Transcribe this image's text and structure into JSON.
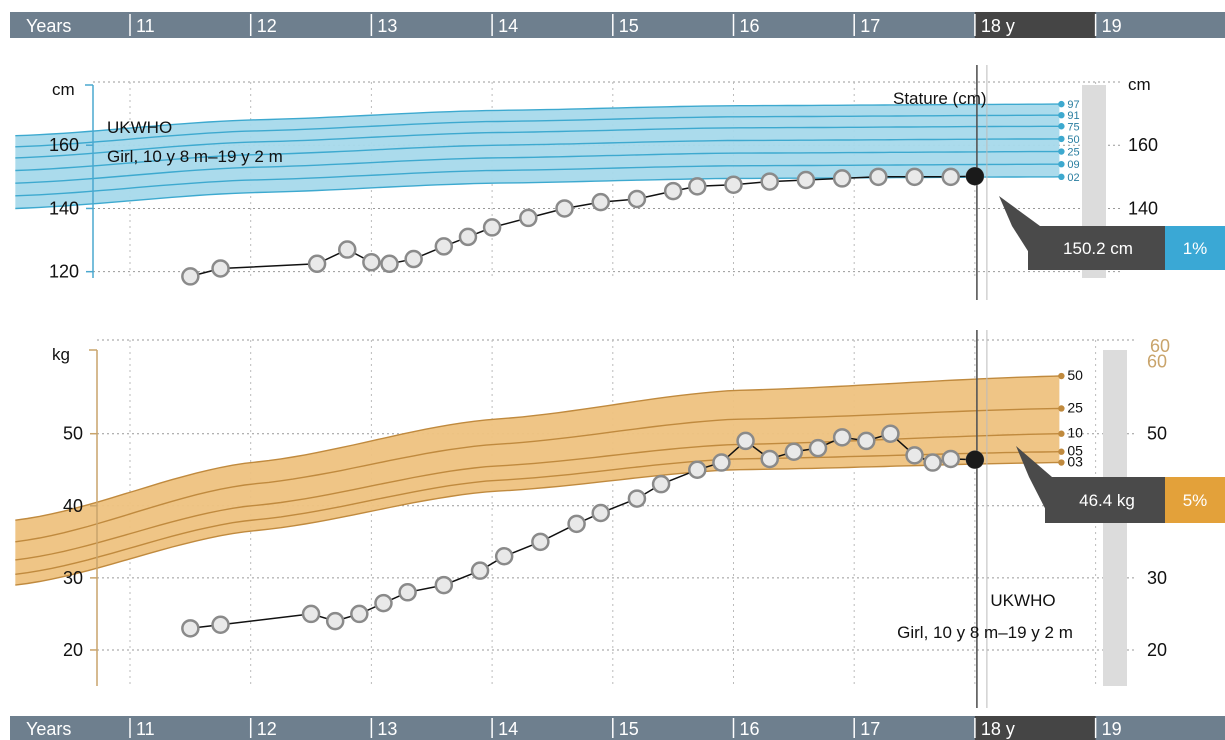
{
  "timeline": {
    "label": "Years",
    "ticks": [
      "11",
      "12",
      "13",
      "14",
      "15",
      "16",
      "17",
      "18 y",
      "19"
    ],
    "current_label": "18 y"
  },
  "height_panel": {
    "unit": "cm",
    "reference_name": "UKWHO",
    "reference_range": "Girl, 10 y 8 m–19 y 2 m",
    "measure_label": "Stature (cm)",
    "current_value": "150.2 cm",
    "current_percentile": "1%",
    "centile_labels": [
      "97",
      "91",
      "75",
      "50",
      "25",
      "09",
      "02"
    ],
    "band_color": "#a7d9eb",
    "line_color": "#3da9cf"
  },
  "weight_panel": {
    "unit": "kg",
    "reference_name": "UKWHO",
    "reference_range": "Girl, 10 y 8 m–19 y 2 m",
    "current_value": "46.4 kg",
    "current_percentile": "5%",
    "centile_labels": [
      "50",
      "25",
      "10",
      "05",
      "03"
    ],
    "right_top_label": "60",
    "band_color": "#eec27f",
    "line_color": "#c08a3e"
  },
  "colors": {
    "timeline_bar": "#6e7f8e",
    "timeline_current": "#454545",
    "callout_dark": "#4a4a4a",
    "height_badge": "#3aa8d5",
    "weight_badge": "#e3a13a",
    "marker": "#1a1a1a"
  },
  "chart_data": [
    {
      "type": "line",
      "title": "Stature (cm)",
      "xlabel": "Years",
      "ylabel": "cm",
      "xlim": [
        10.05,
        19.5
      ],
      "ylim": [
        118,
        180
      ],
      "y_ticks_left": [
        120,
        140,
        160
      ],
      "y_ticks_right": [
        140,
        160
      ],
      "reference_percentiles": [
        {
          "name": "97",
          "x": [
            10.05,
            12,
            14,
            16,
            18.7
          ],
          "y": [
            163,
            168,
            171,
            172.5,
            173
          ]
        },
        {
          "name": "91",
          "x": [
            10.05,
            12,
            14,
            16,
            18.7
          ],
          "y": [
            159.5,
            164.5,
            167.5,
            169,
            169.5
          ]
        },
        {
          "name": "75",
          "x": [
            10.05,
            12,
            14,
            16,
            18.7
          ],
          "y": [
            156,
            161,
            164,
            165.5,
            166
          ]
        },
        {
          "name": "50",
          "x": [
            10.05,
            12,
            14,
            16,
            18.7
          ],
          "y": [
            152,
            157,
            160,
            161.5,
            162
          ]
        },
        {
          "name": "25",
          "x": [
            10.05,
            12,
            14,
            16,
            18.7
          ],
          "y": [
            148,
            153,
            156,
            157.5,
            158
          ]
        },
        {
          "name": "09",
          "x": [
            10.05,
            12,
            14,
            16,
            18.7
          ],
          "y": [
            144,
            149,
            152,
            153.5,
            154
          ]
        },
        {
          "name": "02",
          "x": [
            10.05,
            12,
            14,
            16,
            18.7
          ],
          "y": [
            140,
            145,
            148,
            149.5,
            150
          ]
        }
      ],
      "series": [
        {
          "x": [
            11.5,
            11.75,
            12.55,
            12.8,
            13.0,
            13.15,
            13.35,
            13.6,
            13.8,
            14.0,
            14.3,
            14.6,
            14.9,
            15.2,
            15.5,
            15.7,
            16.0,
            16.3,
            16.6,
            16.9,
            17.2,
            17.5,
            17.8,
            18.0
          ],
          "y": [
            118.5,
            121,
            122.5,
            127,
            123,
            122.5,
            124,
            128,
            131,
            134,
            137,
            140,
            142,
            143,
            145.5,
            147,
            147.5,
            148.5,
            149,
            149.5,
            150,
            150,
            150,
            150.2
          ]
        }
      ],
      "current": {
        "x": 18.0,
        "y": 150.2
      }
    },
    {
      "type": "line",
      "title": "",
      "xlabel": "Years",
      "ylabel": "kg",
      "xlim": [
        10.05,
        19.5
      ],
      "ylim": [
        15,
        63
      ],
      "y_ticks_left": [
        20,
        30,
        40,
        50
      ],
      "y_ticks_right": [
        20,
        30,
        50,
        60
      ],
      "reference_percentiles": [
        {
          "name": "50",
          "x": [
            10.05,
            12,
            14,
            16,
            18.7
          ],
          "y": [
            38,
            46,
            52,
            56,
            58
          ]
        },
        {
          "name": "25",
          "x": [
            10.05,
            12,
            14,
            16,
            18.7
          ],
          "y": [
            35,
            43,
            48.5,
            52,
            53.5
          ]
        },
        {
          "name": "10",
          "x": [
            10.05,
            12,
            14,
            16,
            18.7
          ],
          "y": [
            32.5,
            40,
            45.5,
            48.5,
            50
          ]
        },
        {
          "name": "05",
          "x": [
            10.05,
            12,
            14,
            16,
            18.7
          ],
          "y": [
            30.5,
            38,
            43.5,
            46.5,
            47.5
          ]
        },
        {
          "name": "03",
          "x": [
            10.05,
            12,
            14,
            16,
            18.7
          ],
          "y": [
            29,
            36.5,
            42,
            45,
            46
          ]
        }
      ],
      "series": [
        {
          "x": [
            11.5,
            11.75,
            12.5,
            12.7,
            12.9,
            13.1,
            13.3,
            13.6,
            13.9,
            14.1,
            14.4,
            14.7,
            14.9,
            15.2,
            15.4,
            15.7,
            15.9,
            16.1,
            16.3,
            16.5,
            16.7,
            16.9,
            17.1,
            17.3,
            17.5,
            17.65,
            17.8,
            18.0
          ],
          "y": [
            23,
            23.5,
            25,
            24,
            25,
            26.5,
            28,
            29,
            31,
            33,
            35,
            37.5,
            39,
            41,
            43,
            45,
            46,
            49,
            46.5,
            47.5,
            48,
            49.5,
            49,
            50,
            47,
            46,
            46.5,
            46.4
          ]
        }
      ],
      "current": {
        "x": 18.0,
        "y": 46.4
      }
    }
  ]
}
